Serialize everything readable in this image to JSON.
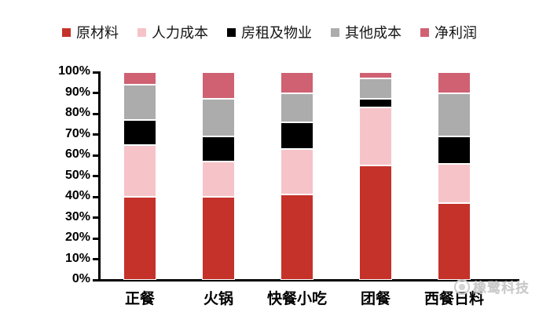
{
  "chart_data": {
    "type": "bar",
    "stacked": true,
    "unit": "%",
    "title": "",
    "xlabel": "",
    "ylabel": "",
    "ylim": [
      0,
      100
    ],
    "ytick_step": 10,
    "ytick_labels": [
      "0%",
      "10%",
      "20%",
      "30%",
      "40%",
      "50%",
      "60%",
      "70%",
      "80%",
      "90%",
      "100%"
    ],
    "grid": false,
    "legend_position": "top",
    "categories": [
      "正餐",
      "火锅",
      "快餐小吃",
      "团餐",
      "西餐日料"
    ],
    "series": [
      {
        "name": "原材料",
        "color": "#C5322A",
        "values": [
          40,
          40,
          41,
          55,
          37
        ]
      },
      {
        "name": "人力成本",
        "color": "#F6C3C8",
        "values": [
          25,
          17,
          22,
          28,
          19
        ]
      },
      {
        "name": "房租及物业",
        "color": "#000000",
        "values": [
          12,
          12,
          13,
          4,
          13
        ]
      },
      {
        "name": "其他成本",
        "color": "#ACACAC",
        "values": [
          17,
          18,
          14,
          10,
          21
        ]
      },
      {
        "name": "净利润",
        "color": "#CF6173",
        "values": [
          6,
          13,
          10,
          3,
          10
        ]
      }
    ]
  },
  "colors": {
    "axis": "#000000",
    "background": "#ffffff",
    "watermark": "#c9c9c9"
  },
  "watermark": {
    "text": "橡鹭科技",
    "logo": "circle-logo"
  }
}
